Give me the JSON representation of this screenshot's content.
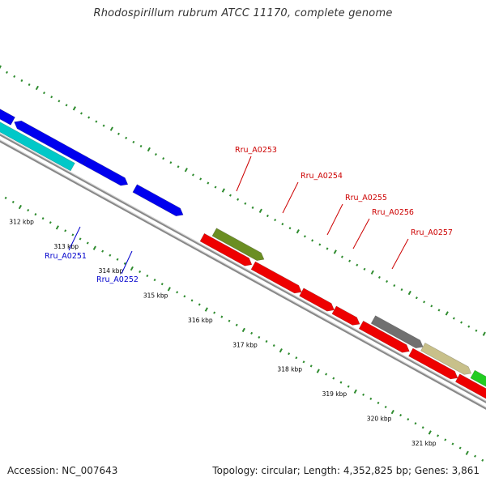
{
  "title": "Rhodospirillum rubrum ATCC 11170, complete genome",
  "footer": {
    "accession": "Accession: NC_007643",
    "topology": "Topology: circular; Length: 4,352,825 bp; Genes: 3,861"
  },
  "colors": {
    "backbone": "#8a8a8a",
    "tick_outer": "#2e8b2e",
    "tick_inner": "#2e8b2e",
    "label_red": "#cc0000",
    "label_blue": "#0000cc"
  },
  "scale": {
    "unit": "kbp",
    "labels": [
      "312 kbp",
      "313 kbp",
      "314 kbp",
      "315 kbp",
      "316 kbp",
      "317 kbp",
      "318 kbp",
      "319 kbp",
      "320 kbp",
      "321 kbp"
    ]
  },
  "genes": [
    {
      "color": "#00c8c8",
      "strand": "-"
    },
    {
      "color": "#0000ee",
      "strand": "-"
    },
    {
      "color": "#0000ee",
      "strand": "-"
    },
    {
      "color": "#0000ee",
      "strand": "+"
    },
    {
      "color": "#0000ee",
      "strand": "+"
    },
    {
      "color": "#6b8e23",
      "strand": "+"
    },
    {
      "color": "#ee0000",
      "strand": "+"
    },
    {
      "color": "#ee0000",
      "strand": "+"
    },
    {
      "color": "#ee0000",
      "strand": "+"
    },
    {
      "color": "#ee0000",
      "strand": "+"
    },
    {
      "color": "#ee0000",
      "strand": "+"
    },
    {
      "color": "#ee0000",
      "strand": "+"
    },
    {
      "color": "#707070",
      "strand": "+"
    },
    {
      "color": "#c8c08a",
      "strand": "+"
    },
    {
      "color": "#22cc22",
      "strand": "+"
    },
    {
      "color": "#ee0000",
      "strand": "+"
    }
  ],
  "gene_labels": [
    {
      "text": "Rru_A0251",
      "color": "#0000cc"
    },
    {
      "text": "Rru_A0252",
      "color": "#0000cc"
    },
    {
      "text": "Rru_A0253",
      "color": "#cc0000"
    },
    {
      "text": "Rru_A0254",
      "color": "#cc0000"
    },
    {
      "text": "Rru_A0255",
      "color": "#cc0000"
    },
    {
      "text": "Rru_A0256",
      "color": "#cc0000"
    },
    {
      "text": "Rru_A0257",
      "color": "#cc0000"
    }
  ]
}
